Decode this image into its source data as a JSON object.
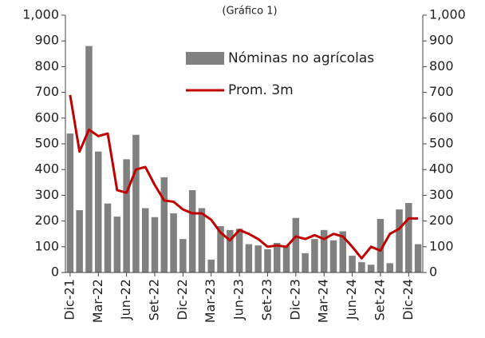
{
  "chart_data": {
    "type": "bar_line",
    "title": "(Gráfico 1)",
    "categories": [
      "Dic-21",
      null,
      null,
      "Mar-22",
      null,
      null,
      "Jun-22",
      null,
      null,
      "Set-22",
      null,
      null,
      "Dic-22",
      null,
      null,
      "Mar-23",
      null,
      null,
      "Jun-23",
      null,
      null,
      "Set-23",
      null,
      null,
      "Dic-23",
      null,
      null,
      "Mar-24",
      null,
      null,
      "Jun-24",
      null,
      null,
      "Set-24",
      null,
      null,
      "Dic-24",
      null
    ],
    "series": [
      {
        "name": "Nóminas no agrícolas",
        "type": "bar",
        "color": "#808080",
        "values": [
          540,
          242,
          880,
          470,
          268,
          217,
          440,
          535,
          250,
          215,
          370,
          230,
          130,
          320,
          250,
          50,
          180,
          165,
          170,
          110,
          105,
          90,
          115,
          105,
          212,
          75,
          130,
          165,
          125,
          160,
          65,
          40,
          30,
          208,
          36,
          245,
          270,
          110
        ]
      },
      {
        "name": "Prom. 3m",
        "type": "line",
        "color": "#c00000",
        "values": [
          690,
          470,
          555,
          530,
          540,
          320,
          310,
          400,
          410,
          340,
          280,
          275,
          245,
          230,
          230,
          205,
          155,
          125,
          165,
          150,
          130,
          100,
          105,
          100,
          140,
          130,
          145,
          130,
          150,
          140,
          100,
          55,
          100,
          85,
          150,
          170,
          210,
          210
        ]
      }
    ],
    "ylim": [
      0,
      1000
    ],
    "yticks": [
      0,
      100,
      200,
      300,
      400,
      500,
      600,
      700,
      800,
      900,
      {
        "value": 1000,
        "label": "1,000"
      }
    ],
    "legend": "top-center"
  }
}
